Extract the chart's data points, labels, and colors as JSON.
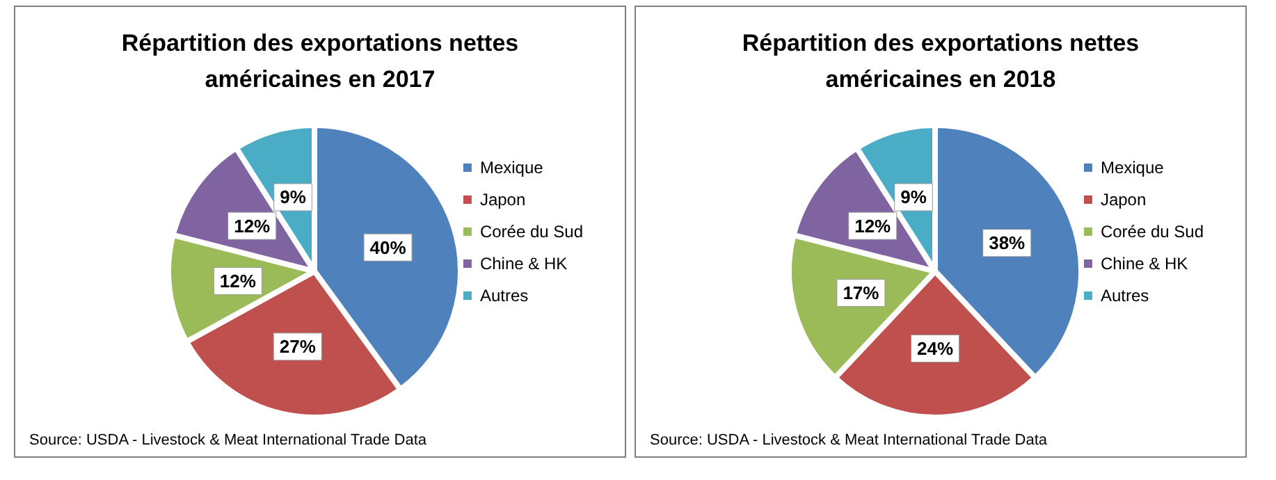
{
  "chart_data": [
    {
      "type": "pie",
      "title": "Répartition des exportations nettes\naméricaines en 2017",
      "categories": [
        "Mexique",
        "Japon",
        "Corée du Sud",
        "Chine & HK",
        "Autres"
      ],
      "values": [
        40,
        27,
        12,
        12,
        9
      ],
      "value_labels": [
        "40%",
        "27%",
        "12%",
        "12%",
        "9%"
      ],
      "colors": [
        "#4f81bd",
        "#c0504d",
        "#9bbb59",
        "#8064a2",
        "#4bacc6"
      ],
      "legend": "right",
      "annotations": [
        "Source: USDA - Livestock & Meat International Trade Data"
      ]
    },
    {
      "type": "pie",
      "title": "Répartition des exportations nettes\naméricaines en 2018",
      "categories": [
        "Mexique",
        "Japon",
        "Corée du Sud",
        "Chine & HK",
        "Autres"
      ],
      "values": [
        38,
        24,
        17,
        12,
        9
      ],
      "value_labels": [
        "38%",
        "24%",
        "17%",
        "12%",
        "9%"
      ],
      "colors": [
        "#4f81bd",
        "#c0504d",
        "#9bbb59",
        "#8064a2",
        "#4bacc6"
      ],
      "legend": "right",
      "annotations": [
        "Source: USDA - Livestock & Meat International Trade Data"
      ]
    }
  ]
}
